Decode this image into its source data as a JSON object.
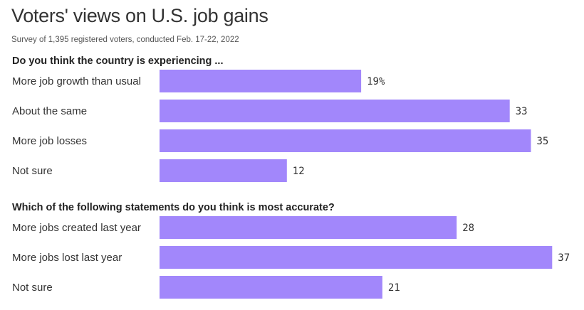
{
  "title": "Voters' views on U.S. job gains",
  "subtitle": "Survey of 1,395 registered voters, conducted Feb. 17-22, 2022",
  "colors": {
    "bar": "#a287fb"
  },
  "chart_data": [
    {
      "type": "bar",
      "orientation": "horizontal",
      "title": "Do you think the country is experiencing ...",
      "categories": [
        "More job growth than usual",
        "About the same",
        "More job losses",
        "Not sure"
      ],
      "values": [
        19,
        33,
        35,
        12
      ],
      "value_labels": [
        "19%",
        "33",
        "35",
        "12"
      ]
    },
    {
      "type": "bar",
      "orientation": "horizontal",
      "title": "Which of the following statements do you think is most accurate?",
      "categories": [
        "More jobs created last year",
        "More jobs lost last year",
        "Not sure"
      ],
      "values": [
        28,
        37,
        21
      ],
      "value_labels": [
        "28",
        "37",
        "21"
      ]
    }
  ]
}
